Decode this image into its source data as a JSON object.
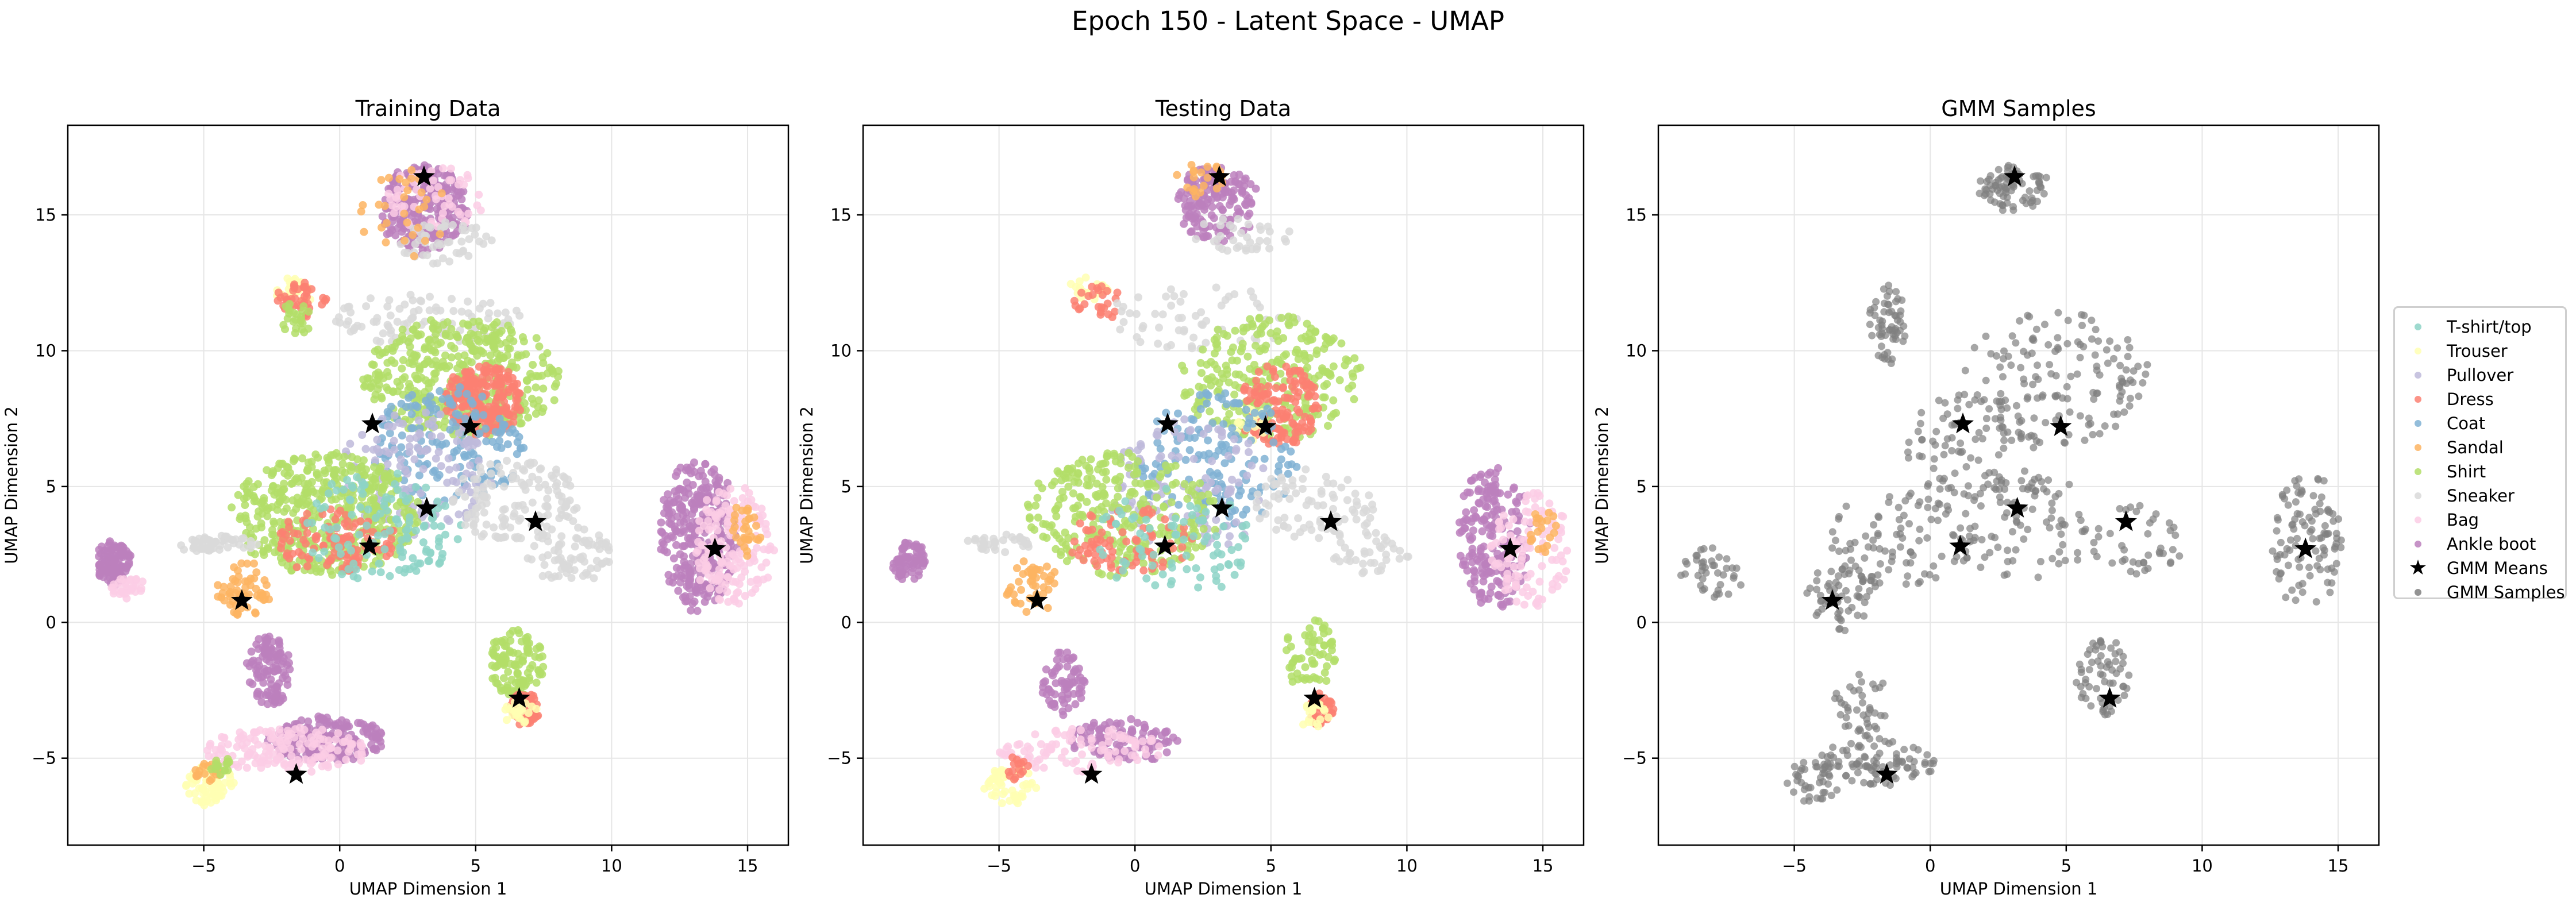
{
  "figure": {
    "suptitle": "Epoch 150 - Latent Space - UMAP"
  },
  "legend": {
    "entries": [
      {
        "label": "T-shirt/top",
        "color": "#8dd3c7",
        "marker": "dot"
      },
      {
        "label": "Trouser",
        "color": "#ffffb3",
        "marker": "dot"
      },
      {
        "label": "Pullover",
        "color": "#bebada",
        "marker": "dot"
      },
      {
        "label": "Dress",
        "color": "#fb8072",
        "marker": "dot"
      },
      {
        "label": "Coat",
        "color": "#80b1d3",
        "marker": "dot"
      },
      {
        "label": "Sandal",
        "color": "#fdb462",
        "marker": "dot"
      },
      {
        "label": "Shirt",
        "color": "#b3de69",
        "marker": "dot"
      },
      {
        "label": "Sneaker",
        "color": "#d9d9d9",
        "marker": "dot"
      },
      {
        "label": "Bag",
        "color": "#fccde5",
        "marker": "dot"
      },
      {
        "label": "Ankle boot",
        "color": "#bc80bd",
        "marker": "dot"
      },
      {
        "label": "GMM Means",
        "color": "#000000",
        "marker": "star"
      },
      {
        "label": "GMM Samples",
        "color": "#808080",
        "marker": "dot"
      }
    ]
  },
  "chart_data": [
    {
      "type": "scatter",
      "title": "Training Data",
      "xlabel": "UMAP Dimension 1",
      "ylabel": "UMAP Dimension 2",
      "xlim": [
        -10,
        16.5
      ],
      "ylim": [
        -8.2,
        18.3
      ],
      "xticks": [
        -5,
        0,
        5,
        10,
        15
      ],
      "yticks": [
        -5,
        0,
        5,
        10,
        15
      ],
      "grid": true,
      "gmm_means": [
        [
          3.1,
          16.4
        ],
        [
          1.2,
          7.3
        ],
        [
          4.8,
          7.2
        ],
        [
          3.2,
          4.2
        ],
        [
          7.2,
          3.7
        ],
        [
          1.1,
          2.8
        ],
        [
          13.8,
          2.7
        ],
        [
          -3.6,
          0.8
        ],
        [
          6.6,
          -2.8
        ],
        [
          -1.6,
          -5.6
        ]
      ],
      "clusters": [
        {
          "class": "Ankle boot",
          "cx": 3.1,
          "cy": 15.2,
          "rx": 1.6,
          "ry": 1.6,
          "n": 260
        },
        {
          "class": "Bag",
          "cx": 3.5,
          "cy": 15.5,
          "rx": 1.8,
          "ry": 1.4,
          "n": 60
        },
        {
          "class": "Sneaker",
          "cx": 3.8,
          "cy": 14.0,
          "rx": 1.8,
          "ry": 0.8,
          "n": 50
        },
        {
          "class": "Sandal",
          "cx": 2.5,
          "cy": 15.0,
          "rx": 1.8,
          "ry": 1.6,
          "n": 30
        },
        {
          "class": "Trouser",
          "cx": -1.7,
          "cy": 12.2,
          "rx": 0.7,
          "ry": 0.5,
          "n": 25
        },
        {
          "class": "Dress",
          "cx": -1.4,
          "cy": 11.9,
          "rx": 0.9,
          "ry": 0.6,
          "n": 40
        },
        {
          "class": "Shirt",
          "cx": -1.6,
          "cy": 11.2,
          "rx": 0.6,
          "ry": 0.6,
          "n": 25
        },
        {
          "class": "Sneaker",
          "cx": 3.2,
          "cy": 11.2,
          "rx": 3.5,
          "ry": 1.0,
          "n": 90
        },
        {
          "class": "Shirt",
          "cx": 4.5,
          "cy": 9.0,
          "rx": 3.6,
          "ry": 2.2,
          "n": 420
        },
        {
          "class": "Dress",
          "cx": 5.3,
          "cy": 8.2,
          "rx": 1.4,
          "ry": 1.3,
          "n": 220
        },
        {
          "class": "Coat",
          "cx": 4.0,
          "cy": 6.5,
          "rx": 2.8,
          "ry": 2.2,
          "n": 160
        },
        {
          "class": "Pullover",
          "cx": 2.8,
          "cy": 5.5,
          "rx": 2.8,
          "ry": 2.3,
          "n": 130
        },
        {
          "class": "Shirt",
          "cx": -0.5,
          "cy": 4.0,
          "rx": 3.5,
          "ry": 2.2,
          "n": 480
        },
        {
          "class": "Dress",
          "cx": -0.2,
          "cy": 3.0,
          "rx": 2.2,
          "ry": 1.2,
          "n": 110
        },
        {
          "class": "T-shirt/top",
          "cx": 1.5,
          "cy": 3.5,
          "rx": 3.0,
          "ry": 2.0,
          "n": 120
        },
        {
          "class": "Sneaker",
          "cx": 6.5,
          "cy": 4.5,
          "rx": 2.4,
          "ry": 1.5,
          "n": 140
        },
        {
          "class": "Sneaker",
          "cx": 8.5,
          "cy": 2.5,
          "rx": 1.8,
          "ry": 1.0,
          "n": 70
        },
        {
          "class": "Sneaker",
          "cx": -4.5,
          "cy": 2.9,
          "rx": 1.5,
          "ry": 0.3,
          "n": 50
        },
        {
          "class": "Sandal",
          "cx": -3.5,
          "cy": 1.2,
          "rx": 1.0,
          "ry": 1.0,
          "n": 60
        },
        {
          "class": "Shirt",
          "cx": 6.5,
          "cy": -1.5,
          "rx": 1.0,
          "ry": 1.3,
          "n": 110
        },
        {
          "class": "Dress",
          "cx": 6.8,
          "cy": -3.2,
          "rx": 0.5,
          "ry": 0.6,
          "n": 60
        },
        {
          "class": "Trouser",
          "cx": 6.6,
          "cy": -3.3,
          "rx": 0.6,
          "ry": 0.5,
          "n": 25
        },
        {
          "class": "Ankle boot",
          "cx": 13.2,
          "cy": 3.2,
          "rx": 1.4,
          "ry": 2.8,
          "n": 320
        },
        {
          "class": "Bag",
          "cx": 14.5,
          "cy": 2.8,
          "rx": 1.5,
          "ry": 2.2,
          "n": 160
        },
        {
          "class": "Sandal",
          "cx": 15.0,
          "cy": 3.5,
          "rx": 0.6,
          "ry": 1.0,
          "n": 30
        },
        {
          "class": "Ankle boot",
          "cx": -8.3,
          "cy": 2.2,
          "rx": 0.6,
          "ry": 0.8,
          "n": 110
        },
        {
          "class": "Bag",
          "cx": -7.8,
          "cy": 1.3,
          "rx": 0.6,
          "ry": 0.4,
          "n": 30
        },
        {
          "class": "Ankle boot",
          "cx": -2.6,
          "cy": -1.8,
          "rx": 0.8,
          "ry": 1.3,
          "n": 110
        },
        {
          "class": "Ankle boot",
          "cx": -0.5,
          "cy": -4.3,
          "rx": 2.2,
          "ry": 0.8,
          "n": 200
        },
        {
          "class": "Bag",
          "cx": -2.0,
          "cy": -4.7,
          "rx": 3.0,
          "ry": 0.8,
          "n": 160
        },
        {
          "class": "Trouser",
          "cx": -4.8,
          "cy": -6.0,
          "rx": 0.9,
          "ry": 0.7,
          "n": 70
        },
        {
          "class": "Sandal",
          "cx": -4.8,
          "cy": -5.5,
          "rx": 0.5,
          "ry": 0.4,
          "n": 20
        },
        {
          "class": "Shirt",
          "cx": -4.3,
          "cy": -5.3,
          "rx": 0.4,
          "ry": 0.3,
          "n": 15
        }
      ]
    },
    {
      "type": "scatter",
      "title": "Testing Data",
      "xlabel": "UMAP Dimension 1",
      "ylabel": "UMAP Dimension 2",
      "xlim": [
        -10,
        16.5
      ],
      "ylim": [
        -8.2,
        18.3
      ],
      "xticks": [
        -5,
        0,
        5,
        10,
        15
      ],
      "yticks": [
        -5,
        0,
        5,
        10,
        15
      ],
      "grid": true,
      "gmm_means": [
        [
          3.1,
          16.4
        ],
        [
          1.2,
          7.3
        ],
        [
          4.8,
          7.2
        ],
        [
          3.2,
          4.2
        ],
        [
          7.2,
          3.7
        ],
        [
          1.1,
          2.8
        ],
        [
          13.8,
          2.7
        ],
        [
          -3.6,
          0.8
        ],
        [
          6.6,
          -2.8
        ],
        [
          -1.6,
          -5.6
        ]
      ],
      "clusters": [
        {
          "class": "Ankle boot",
          "cx": 3.0,
          "cy": 15.4,
          "rx": 1.5,
          "ry": 1.4,
          "n": 160
        },
        {
          "class": "Sneaker",
          "cx": 4.0,
          "cy": 14.3,
          "rx": 1.8,
          "ry": 0.6,
          "n": 35
        },
        {
          "class": "Sandal",
          "cx": 2.5,
          "cy": 16.3,
          "rx": 1.0,
          "ry": 0.6,
          "n": 20
        },
        {
          "class": "Trouser",
          "cx": -1.7,
          "cy": 12.3,
          "rx": 0.7,
          "ry": 0.5,
          "n": 20
        },
        {
          "class": "Dress",
          "cx": -1.3,
          "cy": 11.8,
          "rx": 1.0,
          "ry": 0.6,
          "n": 25
        },
        {
          "class": "Sneaker",
          "cx": 2.5,
          "cy": 11.2,
          "rx": 3.5,
          "ry": 1.2,
          "n": 60
        },
        {
          "class": "Shirt",
          "cx": 5.0,
          "cy": 9.0,
          "rx": 3.3,
          "ry": 2.3,
          "n": 260
        },
        {
          "class": "Dress",
          "cx": 5.3,
          "cy": 8.0,
          "rx": 1.5,
          "ry": 1.5,
          "n": 140
        },
        {
          "class": "Trouser",
          "cx": 4.3,
          "cy": 7.3,
          "rx": 0.6,
          "ry": 0.6,
          "n": 20
        },
        {
          "class": "Coat",
          "cx": 3.0,
          "cy": 6.0,
          "rx": 3.0,
          "ry": 2.5,
          "n": 150
        },
        {
          "class": "Pullover",
          "cx": 2.0,
          "cy": 5.0,
          "rx": 3.0,
          "ry": 2.5,
          "n": 110
        },
        {
          "class": "Shirt",
          "cx": -0.5,
          "cy": 4.0,
          "rx": 3.5,
          "ry": 2.3,
          "n": 280
        },
        {
          "class": "Dress",
          "cx": -0.2,
          "cy": 3.0,
          "rx": 2.3,
          "ry": 1.2,
          "n": 80
        },
        {
          "class": "T-shirt/top",
          "cx": 1.5,
          "cy": 3.0,
          "rx": 3.0,
          "ry": 2.0,
          "n": 80
        },
        {
          "class": "Sneaker",
          "cx": 6.5,
          "cy": 4.3,
          "rx": 2.4,
          "ry": 1.3,
          "n": 80
        },
        {
          "class": "Sneaker",
          "cx": 8.5,
          "cy": 2.6,
          "rx": 1.6,
          "ry": 0.8,
          "n": 40
        },
        {
          "class": "Sneaker",
          "cx": -5.0,
          "cy": 2.9,
          "rx": 1.2,
          "ry": 0.3,
          "n": 30
        },
        {
          "class": "Sandal",
          "cx": -3.8,
          "cy": 1.3,
          "rx": 1.0,
          "ry": 1.0,
          "n": 45
        },
        {
          "class": "Shirt",
          "cx": 6.5,
          "cy": -1.2,
          "rx": 1.0,
          "ry": 1.3,
          "n": 60
        },
        {
          "class": "Dress",
          "cx": 6.8,
          "cy": -3.2,
          "rx": 0.5,
          "ry": 0.6,
          "n": 40
        },
        {
          "class": "Trouser",
          "cx": 6.7,
          "cy": -3.4,
          "rx": 0.6,
          "ry": 0.5,
          "n": 20
        },
        {
          "class": "Ankle boot",
          "cx": 13.2,
          "cy": 3.2,
          "rx": 1.3,
          "ry": 2.7,
          "n": 200
        },
        {
          "class": "Bag",
          "cx": 14.5,
          "cy": 2.7,
          "rx": 1.5,
          "ry": 2.2,
          "n": 110
        },
        {
          "class": "Sandal",
          "cx": 15.0,
          "cy": 3.5,
          "rx": 0.6,
          "ry": 1.0,
          "n": 20
        },
        {
          "class": "Ankle boot",
          "cx": -8.3,
          "cy": 2.2,
          "rx": 0.6,
          "ry": 0.8,
          "n": 70
        },
        {
          "class": "Ankle boot",
          "cx": -2.6,
          "cy": -2.2,
          "rx": 0.8,
          "ry": 1.2,
          "n": 70
        },
        {
          "class": "Ankle boot",
          "cx": -0.5,
          "cy": -4.4,
          "rx": 2.0,
          "ry": 0.8,
          "n": 110
        },
        {
          "class": "Bag",
          "cx": -2.0,
          "cy": -4.7,
          "rx": 3.0,
          "ry": 0.8,
          "n": 100
        },
        {
          "class": "Trouser",
          "cx": -4.6,
          "cy": -6.0,
          "rx": 0.9,
          "ry": 0.7,
          "n": 50
        },
        {
          "class": "Dress",
          "cx": -4.3,
          "cy": -5.4,
          "rx": 0.5,
          "ry": 0.4,
          "n": 15
        }
      ]
    },
    {
      "type": "scatter",
      "title": "GMM Samples",
      "xlabel": "UMAP Dimension 1",
      "ylabel": "UMAP Dimension 2",
      "xlim": [
        -10,
        16.5
      ],
      "ylim": [
        -8.2,
        18.3
      ],
      "xticks": [
        -5,
        0,
        5,
        10,
        15
      ],
      "yticks": [
        -5,
        0,
        5,
        10,
        15
      ],
      "grid": true,
      "gmm_means": [
        [
          3.1,
          16.4
        ],
        [
          1.2,
          7.3
        ],
        [
          4.8,
          7.2
        ],
        [
          3.2,
          4.2
        ],
        [
          7.2,
          3.7
        ],
        [
          1.1,
          2.8
        ],
        [
          13.8,
          2.7
        ],
        [
          -3.6,
          0.8
        ],
        [
          6.6,
          -2.8
        ],
        [
          -1.6,
          -5.6
        ]
      ],
      "clusters": [
        {
          "class": "GMM Samples",
          "cx": 3.1,
          "cy": 16.0,
          "rx": 1.3,
          "ry": 0.8,
          "n": 80
        },
        {
          "class": "GMM Samples",
          "cx": -1.6,
          "cy": 11.0,
          "rx": 0.7,
          "ry": 1.5,
          "n": 60
        },
        {
          "class": "GMM Samples",
          "cx": 4.5,
          "cy": 9.0,
          "rx": 3.5,
          "ry": 2.5,
          "n": 140
        },
        {
          "class": "GMM Samples",
          "cx": 1.5,
          "cy": 6.5,
          "rx": 2.5,
          "ry": 2.0,
          "n": 90
        },
        {
          "class": "GMM Samples",
          "cx": 3.5,
          "cy": 3.5,
          "rx": 2.8,
          "ry": 2.0,
          "n": 90
        },
        {
          "class": "GMM Samples",
          "cx": -1.0,
          "cy": 3.0,
          "rx": 2.8,
          "ry": 1.8,
          "n": 90
        },
        {
          "class": "GMM Samples",
          "cx": 7.5,
          "cy": 3.0,
          "rx": 2.0,
          "ry": 1.3,
          "n": 40
        },
        {
          "class": "GMM Samples",
          "cx": 13.8,
          "cy": 3.0,
          "rx": 1.4,
          "ry": 2.5,
          "n": 100
        },
        {
          "class": "GMM Samples",
          "cx": -8.0,
          "cy": 1.8,
          "rx": 1.2,
          "ry": 1.0,
          "n": 40
        },
        {
          "class": "GMM Samples",
          "cx": -3.3,
          "cy": 1.0,
          "rx": 1.3,
          "ry": 1.3,
          "n": 60
        },
        {
          "class": "GMM Samples",
          "cx": 6.3,
          "cy": -2.0,
          "rx": 1.0,
          "ry": 1.5,
          "n": 60
        },
        {
          "class": "GMM Samples",
          "cx": -2.5,
          "cy": -3.0,
          "rx": 1.0,
          "ry": 1.2,
          "n": 40
        },
        {
          "class": "GMM Samples",
          "cx": -2.0,
          "cy": -5.2,
          "rx": 2.2,
          "ry": 0.9,
          "n": 90
        },
        {
          "class": "GMM Samples",
          "cx": -4.3,
          "cy": -5.9,
          "rx": 1.0,
          "ry": 0.8,
          "n": 40
        }
      ]
    }
  ]
}
